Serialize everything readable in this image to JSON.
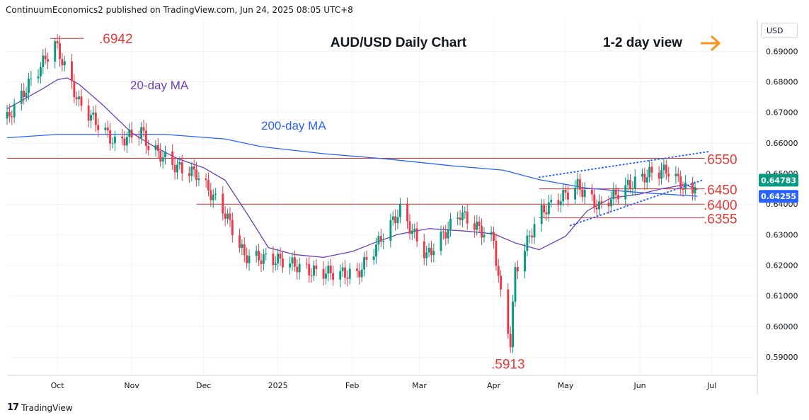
{
  "header": {
    "publisher_line": "ContinuumEconomics2 published on TradingView.com, Jun 24, 2025 08:05 UTC+8"
  },
  "footer": {
    "brand": "TradingView"
  },
  "price_axis": {
    "currency": "USD",
    "ticks": [
      "0.69000",
      "0.68000",
      "0.67000",
      "0.66000",
      "0.65000",
      "0.64000",
      "0.63000",
      "0.62000",
      "0.61000",
      "0.60000",
      "0.59000"
    ]
  },
  "time_axis": {
    "ticks": [
      "Oct",
      "Nov",
      "Dec",
      "2025",
      "Feb",
      "Mar",
      "Apr",
      "May",
      "Jun",
      "Jul"
    ]
  },
  "colors": {
    "up": "#089981",
    "down": "#f23645",
    "ma20": "#6a3fb5",
    "ma200": "#2962ff",
    "level": "#d32f2f",
    "label": "#e53935",
    "arrow": "#f7931a",
    "trend": "#2962ff"
  },
  "chart_data": {
    "type": "candlestick",
    "title": "AUD/USD Daily Chart",
    "subtitle": "1-2 day view",
    "ylim": [
      0.584,
      0.7005
    ],
    "x_range": [
      "2024-09-10",
      "2025-07-20"
    ],
    "series": [
      {
        "name": "20-day MA",
        "points": [
          [
            "2024-09-10",
            0.6712
          ],
          [
            "2024-09-25",
            0.6778
          ],
          [
            "2024-10-01",
            0.6807
          ],
          [
            "2024-10-05",
            0.6813
          ],
          [
            "2024-10-10",
            0.6792
          ],
          [
            "2024-10-20",
            0.6724
          ],
          [
            "2024-11-01",
            0.6633
          ],
          [
            "2024-11-10",
            0.659
          ],
          [
            "2024-11-20",
            0.6549
          ],
          [
            "2024-12-01",
            0.6519
          ],
          [
            "2024-12-10",
            0.6478
          ],
          [
            "2024-12-20",
            0.6358
          ],
          [
            "2024-12-28",
            0.6258
          ],
          [
            "2025-01-08",
            0.6235
          ],
          [
            "2025-01-20",
            0.6226
          ],
          [
            "2025-02-01",
            0.6245
          ],
          [
            "2025-02-10",
            0.6273
          ],
          [
            "2025-02-20",
            0.6301
          ],
          [
            "2025-03-05",
            0.632
          ],
          [
            "2025-03-20",
            0.6312
          ],
          [
            "2025-04-01",
            0.6303
          ],
          [
            "2025-04-10",
            0.6273
          ],
          [
            "2025-04-20",
            0.6251
          ],
          [
            "2025-05-01",
            0.6295
          ],
          [
            "2025-05-10",
            0.6378
          ],
          [
            "2025-05-20",
            0.642
          ],
          [
            "2025-06-01",
            0.6433
          ],
          [
            "2025-06-10",
            0.645
          ],
          [
            "2025-06-20",
            0.6464
          ],
          [
            "2025-06-25",
            0.6447
          ]
        ]
      },
      {
        "name": "200-day MA",
        "points": [
          [
            "2024-09-10",
            0.6617
          ],
          [
            "2024-10-01",
            0.6628
          ],
          [
            "2024-11-15",
            0.6628
          ],
          [
            "2024-12-10",
            0.6613
          ],
          [
            "2024-12-25",
            0.6588
          ],
          [
            "2025-01-20",
            0.6565
          ],
          [
            "2025-02-15",
            0.6548
          ],
          [
            "2025-03-15",
            0.6525
          ],
          [
            "2025-04-05",
            0.6511
          ],
          [
            "2025-04-20",
            0.648
          ],
          [
            "2025-05-10",
            0.6452
          ],
          [
            "2025-06-01",
            0.6438
          ],
          [
            "2025-06-25",
            0.6426
          ]
        ]
      }
    ],
    "candles": [],
    "last_price": {
      "value": 0.64783,
      "label": "0.64783"
    },
    "ma_value": {
      "value": 0.64255,
      "label": "0.64255"
    },
    "levels": [
      {
        "value": 0.6942,
        "label": ".6942",
        "start": "2024-09-28",
        "end": "2024-10-12"
      },
      {
        "value": 0.655,
        "label": ".6550",
        "start": "2024-09-10",
        "end": "2025-06-28"
      },
      {
        "value": 0.645,
        "label": ".6450",
        "start": "2025-04-20",
        "end": "2025-06-28"
      },
      {
        "value": 0.64,
        "label": ".6400",
        "start": "2024-11-28",
        "end": "2025-06-28"
      },
      {
        "value": 0.6355,
        "label": ".6355",
        "start": "2025-04-20",
        "end": "2025-06-28"
      },
      {
        "value": 0.5913,
        "label": ".5913",
        "start": "",
        "end": ""
      }
    ],
    "channel": [
      {
        "name": "upper",
        "from": [
          "2025-04-20",
          0.6488
        ],
        "to": [
          "2025-06-30",
          0.6572
        ]
      },
      {
        "name": "lower",
        "from": [
          "2025-05-03",
          0.633
        ],
        "to": [
          "2025-06-27",
          0.6478
        ]
      }
    ],
    "annotations": [
      "20-day MA",
      "200-day MA"
    ]
  }
}
